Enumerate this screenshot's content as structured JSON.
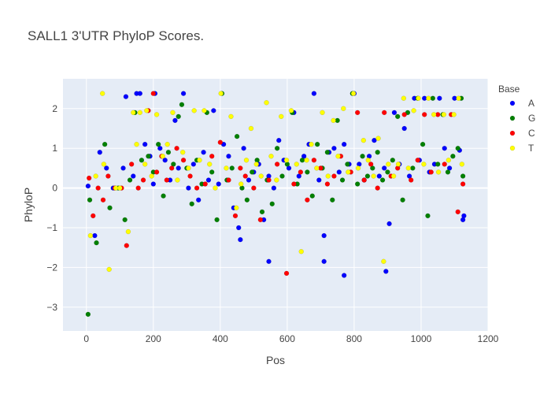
{
  "chart_data": {
    "type": "scatter",
    "title": "SALL1 3'UTR PhyloP Scores.",
    "xlabel": "Pos",
    "ylabel": "PhyloP",
    "xlim": [
      -70,
      1200
    ],
    "ylim": [
      -3.6,
      2.75
    ],
    "xticks": [
      0,
      200,
      400,
      600,
      800,
      1000,
      1200
    ],
    "yticks": [
      -3,
      -2,
      -1,
      0,
      1,
      2
    ],
    "grid": true,
    "legend_title": "Base",
    "legend_position": "right",
    "series": [
      {
        "name": "A",
        "color": "#0000ff",
        "x": [
          5,
          25,
          40,
          60,
          80,
          110,
          118,
          140,
          150,
          160,
          175,
          190,
          205,
          220,
          235,
          250,
          265,
          275,
          290,
          305,
          320,
          335,
          350,
          365,
          380,
          395,
          410,
          425,
          440,
          455,
          470,
          485,
          500,
          515,
          530,
          545,
          560,
          575,
          590,
          605,
          620,
          635,
          650,
          665,
          680,
          695,
          710,
          725,
          740,
          755,
          770,
          785,
          800,
          815,
          830,
          845,
          860,
          875,
          890,
          905,
          920,
          935,
          950,
          965,
          980,
          995,
          1010,
          1025,
          1040,
          1055,
          1070,
          1085,
          1100,
          1115,
          1125,
          1128,
          770,
          710,
          895,
          545,
          460,
          200
        ],
        "y": [
          0.05,
          -1.2,
          0.9,
          0.5,
          0.0,
          0.5,
          2.3,
          0.3,
          2.38,
          2.38,
          1.1,
          0.8,
          2.38,
          1.0,
          0.7,
          0.2,
          1.7,
          0.5,
          2.38,
          0.0,
          0.6,
          -0.3,
          0.9,
          0.2,
          1.95,
          0.1,
          1.1,
          0.8,
          -0.5,
          -1.0,
          1.0,
          0.2,
          0.4,
          0.6,
          -0.8,
          0.3,
          0.0,
          1.2,
          0.7,
          0.5,
          1.9,
          0.3,
          0.8,
          1.1,
          2.38,
          0.2,
          -1.85,
          0.9,
          1.0,
          0.4,
          1.1,
          0.6,
          2.38,
          0.6,
          0.2,
          0.8,
          1.2,
          0.3,
          0.5,
          -0.9,
          1.9,
          0.6,
          1.5,
          0.3,
          2.26,
          0.7,
          2.26,
          0.4,
          0.6,
          2.26,
          1.0,
          0.5,
          2.26,
          0.95,
          -0.8,
          -0.7,
          -2.2,
          -1.2,
          -2.1,
          -1.85,
          -1.3,
          0.1
        ]
      },
      {
        "name": "G",
        "color": "#008000",
        "x": [
          5,
          10,
          30,
          55,
          70,
          95,
          115,
          130,
          145,
          165,
          185,
          200,
          215,
          230,
          245,
          260,
          275,
          285,
          300,
          315,
          330,
          345,
          360,
          375,
          390,
          405,
          420,
          435,
          450,
          465,
          480,
          495,
          510,
          525,
          540,
          555,
          570,
          585,
          600,
          615,
          630,
          645,
          660,
          675,
          690,
          705,
          720,
          735,
          750,
          765,
          780,
          795,
          810,
          825,
          840,
          855,
          870,
          885,
          900,
          915,
          930,
          945,
          960,
          975,
          990,
          1005,
          1020,
          1035,
          1050,
          1065,
          1080,
          1095,
          1110,
          1120,
          1125
        ],
        "y": [
          -3.18,
          -0.3,
          -1.38,
          1.1,
          -0.5,
          0.0,
          -0.8,
          0.2,
          1.9,
          0.7,
          0.8,
          0.4,
          1.1,
          -0.2,
          0.9,
          0.6,
          1.8,
          2.1,
          0.5,
          -0.4,
          0.7,
          0.1,
          1.9,
          0.4,
          -0.8,
          2.38,
          0.2,
          0.5,
          1.3,
          0.0,
          -0.3,
          0.4,
          0.7,
          -0.6,
          0.2,
          -0.4,
          1.0,
          0.3,
          0.6,
          1.9,
          0.1,
          0.7,
          0.4,
          -0.2,
          1.1,
          0.5,
          0.9,
          -0.3,
          1.7,
          0.2,
          0.6,
          2.38,
          0.1,
          0.8,
          0.3,
          0.5,
          0.9,
          0.2,
          0.4,
          0.7,
          1.8,
          -0.3,
          1.9,
          0.5,
          2.26,
          1.1,
          -0.7,
          2.26,
          0.6,
          1.85,
          0.4,
          0.8,
          1.0,
          2.26,
          0.3
        ]
      },
      {
        "name": "C",
        "color": "#ff0000",
        "x": [
          8,
          20,
          35,
          50,
          65,
          85,
          105,
          120,
          135,
          155,
          170,
          185,
          200,
          210,
          225,
          240,
          255,
          270,
          290,
          310,
          330,
          355,
          375,
          400,
          425,
          445,
          460,
          475,
          500,
          520,
          545,
          570,
          598,
          620,
          640,
          660,
          680,
          700,
          720,
          740,
          760,
          790,
          810,
          830,
          850,
          870,
          890,
          910,
          930,
          950,
          970,
          990,
          1010,
          1030,
          1050,
          1070,
          1090,
          1110,
          1125
        ],
        "y": [
          0.25,
          -0.7,
          0.0,
          -0.3,
          0.3,
          0.0,
          0.0,
          -1.45,
          0.6,
          0.0,
          0.2,
          1.95,
          2.38,
          0.4,
          0.8,
          0.2,
          0.5,
          1.0,
          0.7,
          0.3,
          0.0,
          0.1,
          0.8,
          1.15,
          0.2,
          -0.7,
          0.5,
          0.3,
          0.0,
          -0.8,
          0.2,
          0.6,
          -2.15,
          0.1,
          0.4,
          -0.3,
          0.7,
          0.5,
          0.1,
          0.3,
          0.8,
          0.4,
          1.9,
          0.2,
          0.6,
          0.0,
          1.9,
          0.3,
          0.5,
          1.85,
          0.2,
          0.7,
          1.85,
          0.4,
          1.85,
          0.6,
          1.85,
          -0.6,
          0.1
        ]
      },
      {
        "name": "T",
        "color": "#ffff00",
        "x": [
          12,
          28,
          48,
          52,
          68,
          88,
          100,
          125,
          140,
          150,
          160,
          175,
          180,
          195,
          210,
          228,
          242,
          258,
          272,
          288,
          305,
          322,
          338,
          352,
          368,
          385,
          402,
          418,
          432,
          448,
          462,
          478,
          492,
          508,
          522,
          538,
          552,
          568,
          582,
          598,
          612,
          628,
          642,
          658,
          672,
          688,
          705,
          722,
          738,
          752,
          768,
          782,
          798,
          812,
          828,
          842,
          858,
          872,
          888,
          902,
          918,
          932,
          948,
          962,
          978,
          992,
          1008,
          1022,
          1038,
          1052,
          1068,
          1082,
          1098,
          1112,
          1122
        ],
        "y": [
          -1.2,
          0.3,
          2.38,
          0.6,
          -2.05,
          0.0,
          0.0,
          -1.1,
          1.9,
          1.1,
          1.9,
          0.6,
          1.95,
          0.3,
          1.85,
          0.8,
          1.1,
          1.9,
          0.2,
          0.9,
          0.5,
          1.95,
          0.7,
          1.95,
          0.6,
          0.0,
          2.38,
          0.5,
          1.8,
          -0.5,
          0.1,
          0.7,
          1.5,
          0.6,
          0.3,
          2.15,
          0.8,
          0.2,
          1.8,
          0.7,
          1.95,
          0.6,
          -1.6,
          0.7,
          1.1,
          0.5,
          1.9,
          0.3,
          1.7,
          0.8,
          2.0,
          0.4,
          2.38,
          0.5,
          1.2,
          0.7,
          0.3,
          1.25,
          -1.85,
          0.6,
          0.3,
          0.6,
          2.26,
          0.5,
          1.95,
          2.26,
          0.6,
          2.26,
          1.85,
          0.4,
          1.85,
          0.7,
          1.85,
          2.26,
          0.6
        ]
      }
    ]
  }
}
